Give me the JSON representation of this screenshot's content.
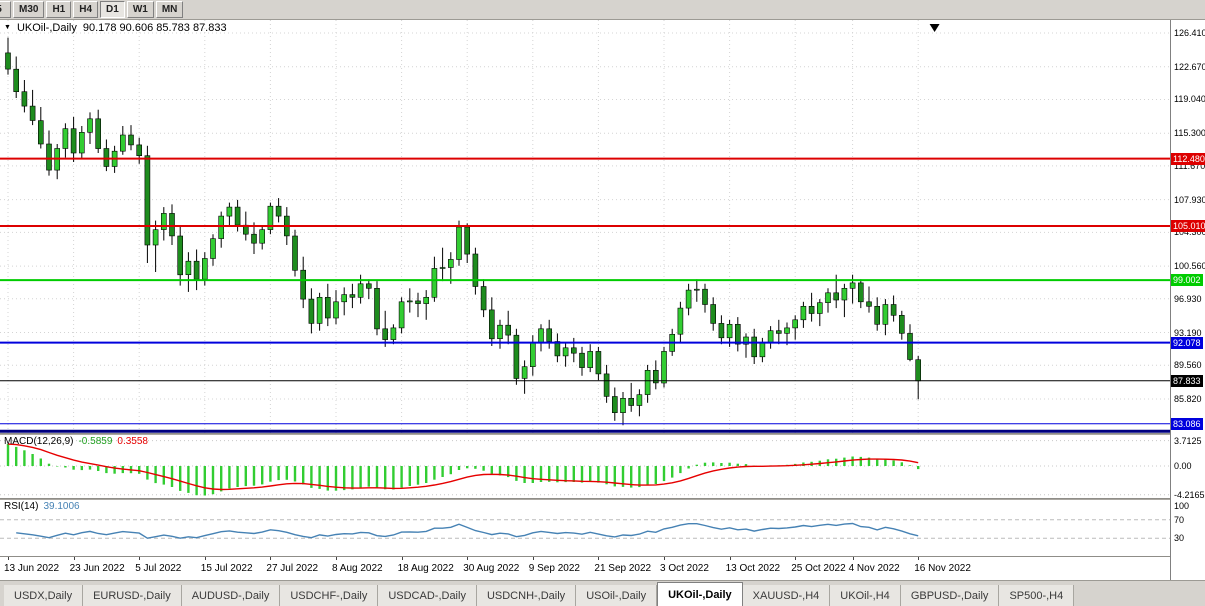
{
  "toolbar": {
    "buttons": [
      {
        "label": "5",
        "active": false
      },
      {
        "label": "M30",
        "active": false
      },
      {
        "label": "H1",
        "active": false
      },
      {
        "label": "H4",
        "active": false
      },
      {
        "label": "D1",
        "active": true
      },
      {
        "label": "W1",
        "active": false
      },
      {
        "label": "MN",
        "active": false
      }
    ]
  },
  "chart": {
    "title": {
      "symbol": "UKOil-,Daily",
      "ohlc": "90.178 90.606 85.783 87.833"
    },
    "price_axis_ticks": [
      "126.410",
      "122.670",
      "119.040",
      "115.300",
      "111.670",
      "107.930",
      "104.300",
      "100.560",
      "96.930",
      "93.190",
      "89.560",
      "85.820"
    ],
    "hlines": [
      {
        "price": 112.48,
        "label": "112.480",
        "color": "#DD0000",
        "width": 2
      },
      {
        "price": 105.01,
        "label": "105.010",
        "color": "#DD0000",
        "width": 2
      },
      {
        "price": 99.002,
        "label": "99.002",
        "color": "#00CC00",
        "width": 2
      },
      {
        "price": 92.078,
        "label": "92.078",
        "color": "#0000DD",
        "width": 2
      },
      {
        "price": 87.833,
        "label": "87.833",
        "color": "#000000",
        "width": 1
      },
      {
        "price": 83.086,
        "label": "83.086",
        "color": "#0000DD",
        "width": 1
      },
      {
        "price": 82.25,
        "label": "",
        "color": "#000080",
        "width": 3
      }
    ],
    "marker": {
      "type": "arrow-down",
      "i": 113
    },
    "date_ticks": [
      {
        "label": "13 Jun 2022",
        "i": 0
      },
      {
        "label": "23 Jun 2022",
        "i": 8
      },
      {
        "label": "5 Jul 2022",
        "i": 16
      },
      {
        "label": "15 Jul 2022",
        "i": 24
      },
      {
        "label": "27 Jul 2022",
        "i": 32
      },
      {
        "label": "8 Aug 2022",
        "i": 40
      },
      {
        "label": "18 Aug 2022",
        "i": 48
      },
      {
        "label": "30 Aug 2022",
        "i": 56
      },
      {
        "label": "9 Sep 2022",
        "i": 64
      },
      {
        "label": "21 Sep 2022",
        "i": 72
      },
      {
        "label": "3 Oct 2022",
        "i": 80
      },
      {
        "label": "13 Oct 2022",
        "i": 88
      },
      {
        "label": "25 Oct 2022",
        "i": 96
      },
      {
        "label": "4 Nov 2022",
        "i": 103
      },
      {
        "label": "16 Nov 2022",
        "i": 111
      }
    ],
    "candles": [
      [
        124.2,
        125.9,
        121.8,
        122.4
      ],
      [
        122.4,
        123.8,
        119.2,
        119.9
      ],
      [
        119.9,
        121.2,
        117.6,
        118.3
      ],
      [
        118.3,
        120.1,
        116.2,
        116.7
      ],
      [
        116.7,
        118.2,
        113.6,
        114.1
      ],
      [
        114.1,
        115.6,
        110.6,
        111.2
      ],
      [
        111.2,
        114.1,
        110.2,
        113.6
      ],
      [
        113.6,
        116.4,
        112.6,
        115.8
      ],
      [
        115.8,
        117.1,
        112.1,
        113.1
      ],
      [
        113.1,
        116.1,
        112.4,
        115.4
      ],
      [
        115.4,
        117.6,
        114.1,
        116.9
      ],
      [
        116.9,
        117.9,
        113.1,
        113.6
      ],
      [
        113.6,
        114.6,
        111.1,
        111.6
      ],
      [
        111.6,
        113.9,
        110.9,
        113.3
      ],
      [
        113.3,
        116.1,
        112.9,
        115.1
      ],
      [
        115.1,
        116.2,
        113.4,
        114.0
      ],
      [
        114.0,
        114.8,
        111.9,
        112.8
      ],
      [
        112.8,
        113.9,
        100.9,
        102.9
      ],
      [
        102.9,
        105.6,
        99.9,
        104.6
      ],
      [
        104.6,
        107.1,
        103.4,
        106.4
      ],
      [
        106.4,
        107.4,
        102.9,
        103.9
      ],
      [
        103.9,
        104.9,
        98.4,
        99.6
      ],
      [
        99.6,
        102.1,
        97.7,
        101.1
      ],
      [
        101.1,
        102.4,
        97.9,
        99.1
      ],
      [
        99.1,
        102.1,
        98.4,
        101.4
      ],
      [
        101.4,
        104.1,
        100.6,
        103.6
      ],
      [
        103.6,
        106.6,
        102.6,
        106.1
      ],
      [
        106.1,
        107.6,
        105.1,
        107.1
      ],
      [
        107.1,
        107.9,
        104.4,
        105.1
      ],
      [
        105.1,
        106.6,
        103.4,
        104.1
      ],
      [
        104.1,
        105.4,
        101.9,
        103.1
      ],
      [
        103.1,
        105.1,
        102.4,
        104.6
      ],
      [
        104.6,
        107.6,
        104.1,
        107.2
      ],
      [
        107.2,
        108.1,
        105.4,
        106.1
      ],
      [
        106.1,
        107.1,
        102.9,
        103.9
      ],
      [
        103.9,
        104.6,
        99.4,
        100.1
      ],
      [
        100.1,
        101.6,
        95.9,
        96.9
      ],
      [
        96.9,
        98.1,
        93.1,
        94.2
      ],
      [
        94.2,
        97.6,
        93.4,
        97.1
      ],
      [
        97.1,
        98.6,
        93.9,
        94.8
      ],
      [
        94.8,
        97.9,
        94.1,
        96.6
      ],
      [
        96.6,
        98.2,
        95.1,
        97.4
      ],
      [
        97.4,
        98.6,
        95.9,
        97.1
      ],
      [
        97.1,
        99.6,
        96.4,
        98.6
      ],
      [
        98.6,
        99.1,
        96.9,
        98.1
      ],
      [
        98.1,
        98.9,
        92.9,
        93.6
      ],
      [
        93.6,
        95.6,
        91.6,
        92.4
      ],
      [
        92.4,
        94.1,
        91.9,
        93.7
      ],
      [
        93.7,
        97.1,
        93.1,
        96.6
      ],
      [
        96.6,
        98.1,
        95.4,
        96.7
      ],
      [
        96.7,
        97.6,
        94.9,
        96.4
      ],
      [
        96.4,
        97.9,
        94.6,
        97.1
      ],
      [
        97.1,
        101.6,
        96.6,
        100.3
      ],
      [
        100.3,
        102.6,
        98.9,
        100.4
      ],
      [
        100.4,
        102.1,
        98.6,
        101.3
      ],
      [
        101.3,
        105.6,
        100.6,
        104.9
      ],
      [
        104.9,
        105.3,
        100.9,
        101.9
      ],
      [
        101.9,
        102.6,
        97.4,
        98.3
      ],
      [
        98.3,
        99.1,
        94.9,
        95.7
      ],
      [
        95.7,
        97.1,
        91.7,
        92.5
      ],
      [
        92.5,
        94.6,
        91.4,
        94.0
      ],
      [
        94.0,
        95.6,
        91.9,
        92.9
      ],
      [
        92.9,
        93.6,
        87.4,
        88.1
      ],
      [
        88.1,
        90.1,
        86.4,
        89.4
      ],
      [
        89.4,
        92.9,
        88.4,
        92.1
      ],
      [
        92.1,
        94.1,
        91.1,
        93.6
      ],
      [
        93.6,
        94.6,
        91.4,
        92.2
      ],
      [
        92.2,
        93.1,
        89.9,
        90.6
      ],
      [
        90.6,
        92.1,
        89.4,
        91.5
      ],
      [
        91.5,
        92.6,
        89.9,
        90.9
      ],
      [
        90.9,
        91.6,
        88.4,
        89.3
      ],
      [
        89.3,
        91.9,
        88.8,
        91.1
      ],
      [
        91.1,
        91.6,
        87.9,
        88.6
      ],
      [
        88.6,
        89.6,
        85.4,
        86.1
      ],
      [
        86.1,
        87.1,
        83.4,
        84.3
      ],
      [
        84.3,
        86.6,
        82.9,
        85.9
      ],
      [
        85.9,
        87.6,
        84.4,
        85.1
      ],
      [
        85.1,
        86.9,
        83.9,
        86.3
      ],
      [
        86.3,
        89.6,
        85.4,
        89.0
      ],
      [
        89.0,
        90.1,
        86.9,
        87.6
      ],
      [
        87.6,
        91.6,
        87.1,
        91.1
      ],
      [
        91.1,
        93.6,
        90.6,
        93.0
      ],
      [
        93.0,
        96.6,
        92.1,
        95.9
      ],
      [
        95.9,
        98.6,
        95.1,
        97.9
      ],
      [
        97.9,
        99.1,
        96.6,
        98.0
      ],
      [
        98.0,
        98.6,
        95.4,
        96.3
      ],
      [
        96.3,
        97.1,
        93.4,
        94.2
      ],
      [
        94.2,
        95.1,
        91.9,
        92.6
      ],
      [
        92.6,
        94.6,
        91.6,
        94.1
      ],
      [
        94.1,
        94.9,
        91.1,
        91.9
      ],
      [
        91.9,
        93.1,
        90.4,
        92.7
      ],
      [
        92.7,
        93.6,
        89.7,
        90.5
      ],
      [
        90.5,
        92.6,
        89.9,
        92.1
      ],
      [
        92.1,
        93.9,
        91.4,
        93.4
      ],
      [
        93.4,
        94.6,
        91.9,
        93.1
      ],
      [
        93.1,
        94.3,
        91.8,
        93.7
      ],
      [
        93.7,
        95.1,
        92.4,
        94.6
      ],
      [
        94.6,
        96.6,
        93.7,
        96.1
      ],
      [
        96.1,
        97.6,
        94.4,
        95.3
      ],
      [
        95.3,
        96.9,
        93.9,
        96.5
      ],
      [
        96.5,
        98.1,
        95.4,
        97.6
      ],
      [
        97.6,
        99.6,
        95.9,
        96.8
      ],
      [
        96.8,
        98.6,
        94.9,
        98.1
      ],
      [
        98.1,
        99.6,
        96.4,
        98.7
      ],
      [
        98.7,
        99.1,
        95.9,
        96.6
      ],
      [
        96.6,
        98.3,
        95.4,
        96.1
      ],
      [
        96.1,
        97.1,
        93.4,
        94.1
      ],
      [
        94.1,
        96.9,
        92.9,
        96.3
      ],
      [
        96.3,
        97.3,
        94.4,
        95.1
      ],
      [
        95.1,
        95.6,
        92.4,
        93.1
      ],
      [
        93.1,
        94.1,
        90.0,
        90.2
      ],
      [
        90.178,
        90.606,
        85.783,
        87.833
      ]
    ]
  },
  "macd": {
    "label": "MACD(12,26,9)",
    "value_main": "-0.5859",
    "value_signal": "0.3558",
    "axis": [
      {
        "t": "3.7125",
        "v": 3.7125
      },
      {
        "t": "0.00",
        "v": 0
      },
      {
        "t": "-4.2165",
        "v": -4.2165
      }
    ]
  },
  "rsi": {
    "label": "RSI(14)",
    "value": "39.1006",
    "levels": [
      70,
      30
    ],
    "axis": [
      {
        "t": "100",
        "v": 100
      },
      {
        "t": "70",
        "v": 70
      },
      {
        "t": "30",
        "v": 30
      }
    ]
  },
  "tabs": {
    "active_index": 7,
    "items": [
      "USDX,Daily",
      "EURUSD-,Daily",
      "AUDUSD-,Daily",
      "USDCHF-,Daily",
      "USDCAD-,Daily",
      "USDCNH-,Daily",
      "USOil-,Daily",
      "UKOil-,Daily",
      "XAUUSD-,H4",
      "UKOil-,H4",
      "GBPUSD-,Daily",
      "SP500-,H4"
    ]
  },
  "colors": {
    "bull": "#32CD32",
    "bear": "#1E8C1E",
    "wick": "#000000",
    "grid": "#D4D4D4",
    "macd_hist": "#32CD32",
    "macd_signal": "#E60000",
    "rsi_line": "#4682B4",
    "macd_value_main_color": "#1E9E1E",
    "rsi_value_color": "#4682B4"
  }
}
